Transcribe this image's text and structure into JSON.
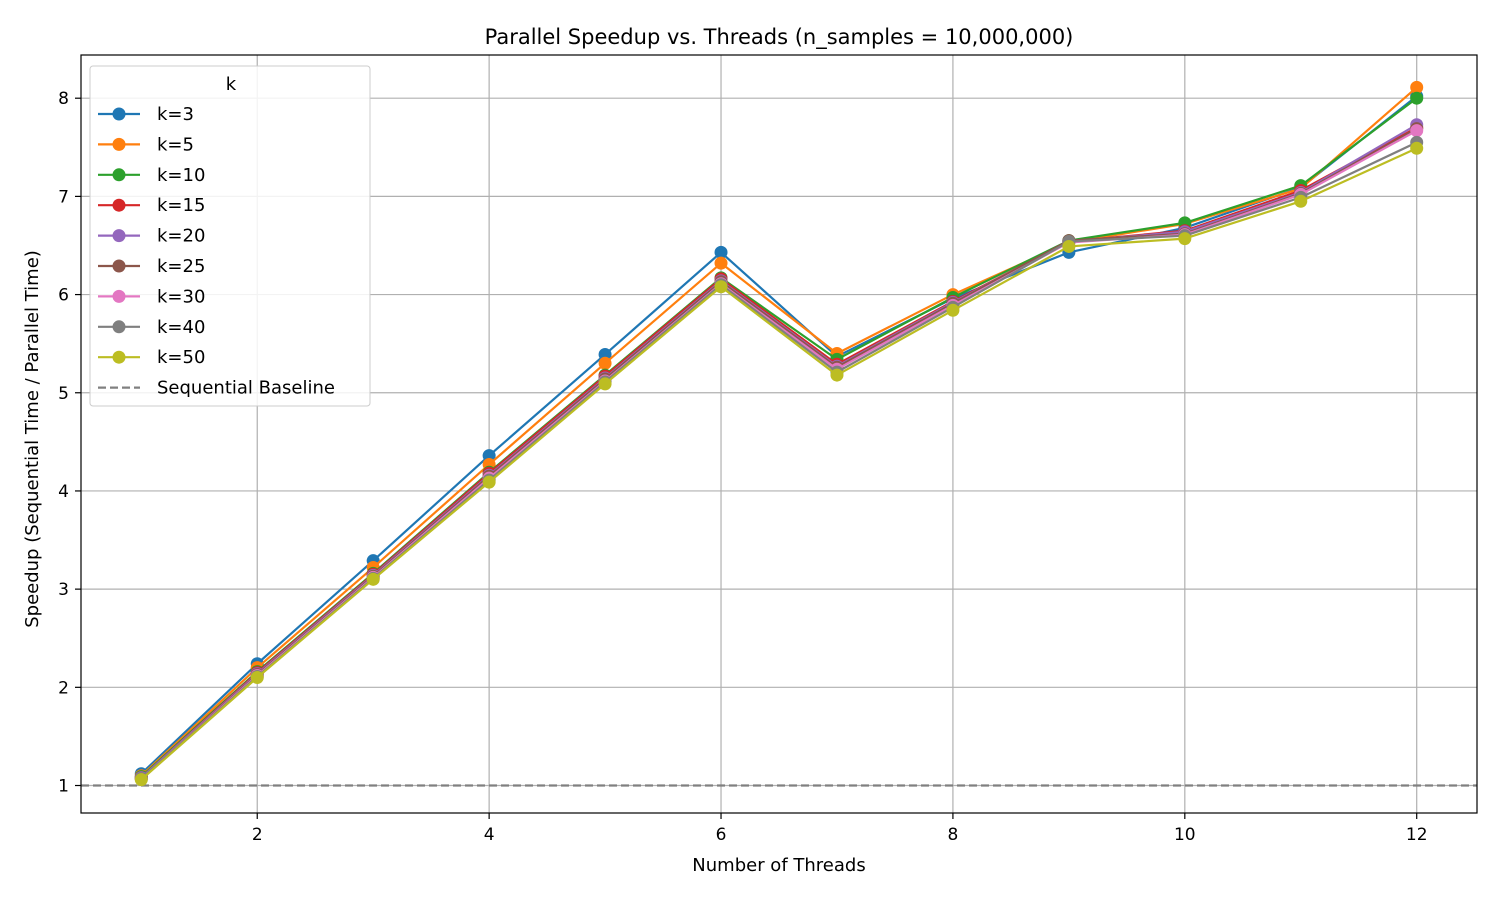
{
  "chart_data": {
    "type": "line",
    "title": "Parallel Speedup vs. Threads (n_samples = 10,000,000)",
    "xlabel": "Number of Threads",
    "ylabel": "Speedup (Sequential Time / Parallel Time)",
    "xlim": [
      0.48,
      12.52
    ],
    "ylim": [
      0.72,
      8.44
    ],
    "xticks": [
      2,
      4,
      6,
      8,
      10,
      12
    ],
    "yticks": [
      1,
      2,
      3,
      4,
      5,
      6,
      7,
      8
    ],
    "grid": true,
    "legend": {
      "title": "k",
      "placement": "top-left"
    },
    "x": [
      1,
      2,
      3,
      4,
      5,
      6,
      7,
      8,
      9,
      10,
      11,
      12
    ],
    "series": [
      {
        "name": "k=3",
        "color": "#1f77b4",
        "values": [
          1.12,
          2.24,
          3.29,
          4.36,
          5.39,
          6.43,
          5.37,
          5.96,
          6.43,
          6.68,
          7.09,
          8.02
        ]
      },
      {
        "name": "k=5",
        "color": "#ff7f0e",
        "values": [
          1.1,
          2.2,
          3.22,
          4.27,
          5.3,
          6.32,
          5.4,
          6.0,
          6.53,
          6.72,
          7.08,
          8.11
        ]
      },
      {
        "name": "k=10",
        "color": "#2ca02c",
        "values": [
          1.09,
          2.16,
          3.16,
          4.19,
          5.18,
          6.17,
          5.34,
          5.97,
          6.55,
          6.73,
          7.11,
          8.0
        ]
      },
      {
        "name": "k=15",
        "color": "#d62728",
        "values": [
          1.08,
          2.15,
          3.15,
          4.18,
          5.17,
          6.16,
          5.29,
          5.93,
          6.54,
          6.65,
          7.06,
          7.7
        ]
      },
      {
        "name": "k=20",
        "color": "#9467bd",
        "values": [
          1.08,
          2.14,
          3.14,
          4.16,
          5.15,
          6.14,
          5.27,
          5.92,
          6.54,
          6.64,
          7.04,
          7.73
        ]
      },
      {
        "name": "k=25",
        "color": "#8c564b",
        "values": [
          1.07,
          2.13,
          3.13,
          4.15,
          5.14,
          6.13,
          5.26,
          5.91,
          6.55,
          6.62,
          7.03,
          7.69
        ]
      },
      {
        "name": "k=30",
        "color": "#e377c2",
        "values": [
          1.07,
          2.12,
          3.12,
          4.13,
          5.12,
          6.11,
          5.24,
          5.89,
          6.53,
          6.61,
          7.02,
          7.67
        ]
      },
      {
        "name": "k=40",
        "color": "#7f7f7f",
        "values": [
          1.07,
          2.11,
          3.11,
          4.11,
          5.11,
          6.1,
          5.21,
          5.87,
          6.54,
          6.6,
          6.99,
          7.55
        ]
      },
      {
        "name": "k=50",
        "color": "#bcbd22",
        "values": [
          1.06,
          2.1,
          3.1,
          4.09,
          5.09,
          6.08,
          5.18,
          5.84,
          6.49,
          6.57,
          6.95,
          7.49
        ]
      }
    ],
    "baseline": {
      "name": "Sequential Baseline",
      "value": 1.0,
      "color": "#808080",
      "style": "dashed"
    }
  }
}
